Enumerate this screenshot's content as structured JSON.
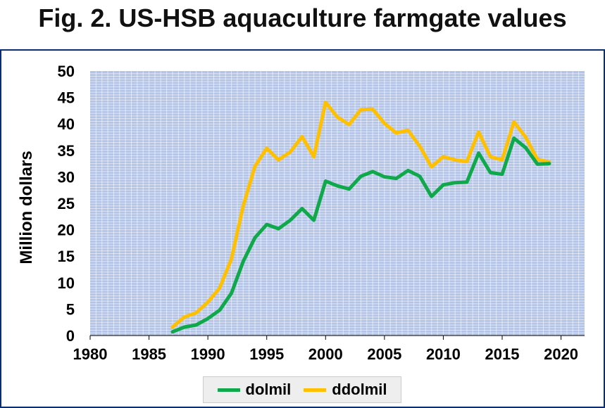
{
  "chart_data": {
    "type": "line",
    "title": "Fig. 2. US-HSB aquaculture farmgate values",
    "xlabel": "",
    "ylabel": "Million dollars",
    "xlim": [
      1980,
      2022
    ],
    "ylim": [
      0,
      50
    ],
    "xticks": [
      1980,
      1985,
      1990,
      1995,
      2000,
      2005,
      2010,
      2015,
      2020
    ],
    "yticks": [
      0,
      5,
      10,
      15,
      20,
      25,
      30,
      35,
      40,
      45,
      50
    ],
    "grid": true,
    "legend_position": "bottom",
    "colors": {
      "plot_bg": "#b4c4e6",
      "grid": "#ffffff",
      "border": "#0b2e72"
    },
    "series": [
      {
        "name": "dolmil",
        "color": "#0fa84a",
        "x": [
          1987,
          1988,
          1989,
          1990,
          1991,
          1992,
          1993,
          1994,
          1995,
          1996,
          1997,
          1998,
          1999,
          2000,
          2001,
          2002,
          2003,
          2004,
          2005,
          2006,
          2007,
          2008,
          2009,
          2010,
          2011,
          2012,
          2013,
          2014,
          2015,
          2016,
          2017,
          2018,
          2019
        ],
        "values": [
          0.7,
          1.6,
          2.0,
          3.2,
          4.8,
          8.0,
          14.0,
          18.5,
          21.0,
          20.2,
          21.8,
          24.0,
          21.8,
          29.2,
          28.3,
          27.7,
          30.1,
          31.0,
          30.0,
          29.7,
          31.2,
          30.1,
          26.3,
          28.5,
          28.9,
          29.0,
          34.5,
          30.8,
          30.5,
          37.3,
          35.5,
          32.4,
          32.5
        ]
      },
      {
        "name": "ddolmil",
        "color": "#ffc000",
        "x": [
          1987,
          1988,
          1989,
          1990,
          1991,
          1992,
          1993,
          1994,
          1995,
          1996,
          1997,
          1998,
          1999,
          2000,
          2001,
          2002,
          2003,
          2004,
          2005,
          2006,
          2007,
          2008,
          2009,
          2010,
          2011,
          2012,
          2013,
          2014,
          2015,
          2016,
          2017,
          2018,
          2019
        ],
        "values": [
          1.6,
          3.5,
          4.3,
          6.3,
          9.0,
          14.5,
          24.5,
          32.0,
          35.4,
          33.2,
          34.7,
          37.6,
          33.8,
          44.1,
          41.3,
          39.9,
          42.7,
          42.8,
          40.1,
          38.3,
          38.8,
          35.8,
          31.9,
          33.8,
          33.2,
          32.9,
          38.5,
          33.8,
          33.2,
          40.4,
          37.5,
          33.3,
          32.8
        ]
      }
    ]
  }
}
